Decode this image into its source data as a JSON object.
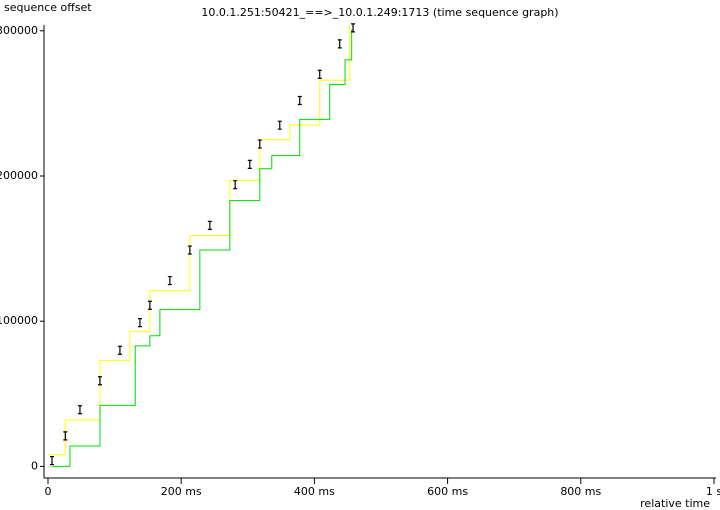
{
  "chart_data": {
    "type": "line",
    "title": "10.0.1.251:50421_==>_10.0.1.249:1713 (time sequence graph)",
    "y_label": "sequence offset",
    "x_label": "relative time",
    "xlim": [
      -6,
      1003
    ],
    "ylim": [
      -8000,
      304000
    ],
    "xticks": [
      {
        "value": 0,
        "label": "0"
      },
      {
        "value": 200,
        "label": "200 ms"
      },
      {
        "value": 400,
        "label": "400 ms"
      },
      {
        "value": 600,
        "label": "600 ms"
      },
      {
        "value": 800,
        "label": "800 ms"
      },
      {
        "value": 1000,
        "label": "1 s"
      }
    ],
    "yticks": [
      0,
      100000,
      200000,
      300000
    ],
    "series": [
      {
        "style": "step",
        "color": "#ffff00",
        "x": [
          0,
          26,
          78,
          123,
          153,
          213,
          273,
          318,
          363,
          408,
          453
        ],
        "values": [
          8000,
          32000,
          73000,
          93000,
          121000,
          159000,
          197000,
          225000,
          235000,
          266000,
          304000
        ]
      },
      {
        "style": "step",
        "color": "#00dd00",
        "x": [
          6,
          33,
          78,
          131,
          153,
          168,
          228,
          273,
          318,
          336,
          378,
          423,
          446,
          456
        ],
        "values": [
          0,
          14000,
          42000,
          83000,
          90000,
          108000,
          149000,
          183000,
          205000,
          214000,
          239000,
          263000,
          280000,
          301000
        ]
      },
      {
        "style": "points",
        "color": "#000000",
        "x": [
          6,
          26,
          48,
          78,
          108,
          138,
          153,
          183,
          213,
          243,
          281,
          303,
          318,
          348,
          378,
          408,
          438,
          458
        ],
        "values": [
          4000,
          21000,
          39000,
          59000,
          80000,
          99000,
          111000,
          128000,
          149000,
          166000,
          194000,
          208000,
          222000,
          235000,
          252000,
          270000,
          291000,
          302000
        ]
      }
    ]
  }
}
